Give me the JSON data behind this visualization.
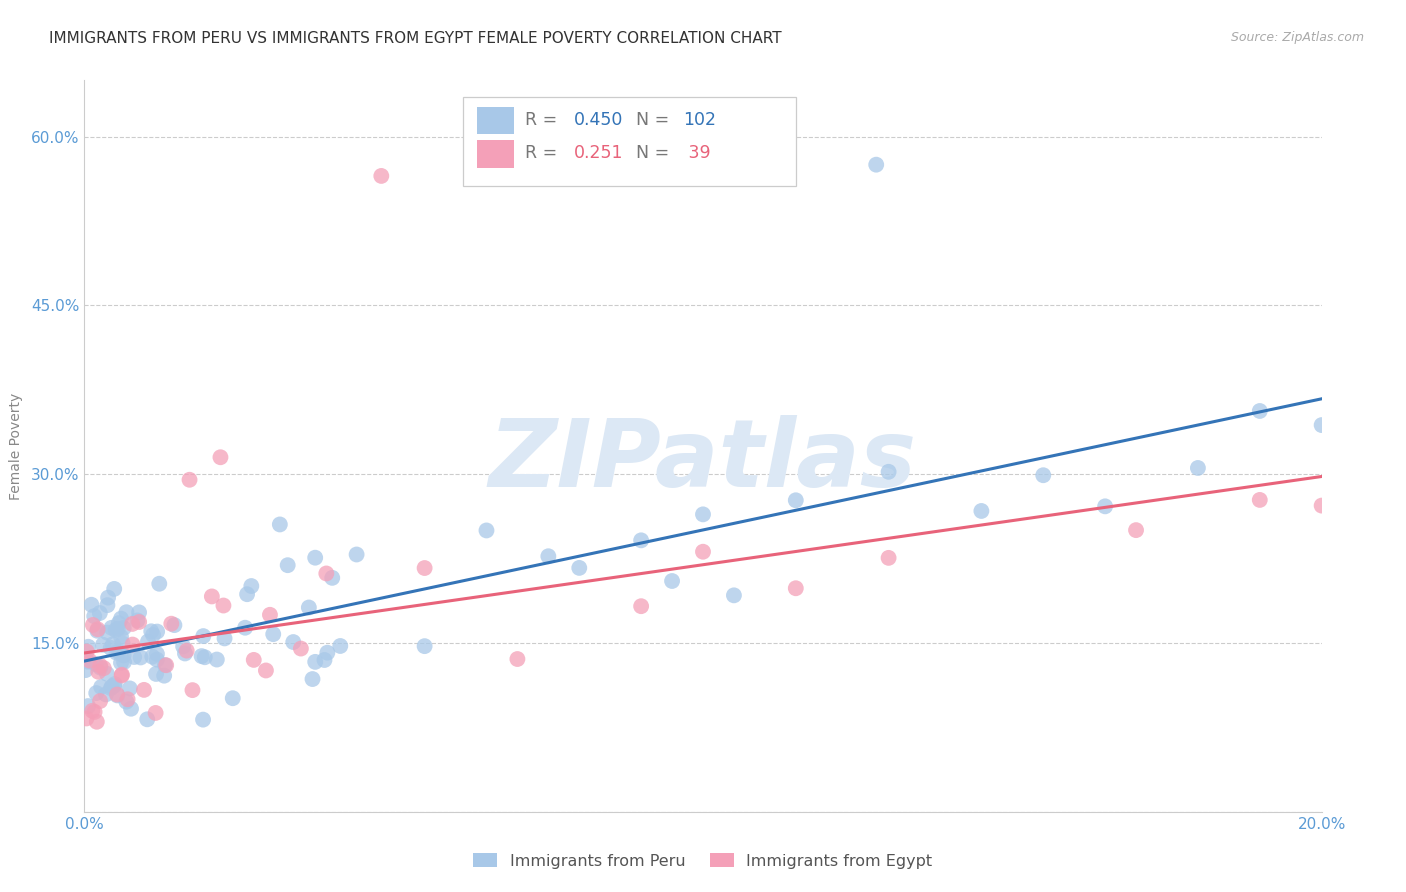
{
  "title": "IMMIGRANTS FROM PERU VS IMMIGRANTS FROM EGYPT FEMALE POVERTY CORRELATION CHART",
  "source": "Source: ZipAtlas.com",
  "ylabel": "Female Poverty",
  "xlim": [
    0.0,
    0.2
  ],
  "ylim": [
    0.0,
    0.65
  ],
  "yticks": [
    0.0,
    0.15,
    0.3,
    0.45,
    0.6
  ],
  "ytick_labels": [
    "",
    "15.0%",
    "30.0%",
    "45.0%",
    "60.0%"
  ],
  "xticks": [
    0.0,
    0.05,
    0.1,
    0.15,
    0.2
  ],
  "xtick_labels": [
    "0.0%",
    "",
    "",
    "",
    "20.0%"
  ],
  "watermark": "ZIPatlas",
  "peru_color": "#a8c8e8",
  "egypt_color": "#f4a0b8",
  "peru_line_color": "#3474b7",
  "egypt_line_color": "#e8637a",
  "background_color": "#ffffff",
  "grid_color": "#cccccc",
  "title_color": "#333333",
  "tick_label_color": "#5b9bd5",
  "watermark_color": "#dce8f5",
  "title_fontsize": 11,
  "source_fontsize": 9,
  "ylabel_fontsize": 10,
  "tick_fontsize": 11,
  "watermark_fontsize": 68,
  "peru_R": "0.450",
  "peru_N": "102",
  "egypt_R": "0.251",
  "egypt_N": "39",
  "peru_label": "Immigrants from Peru",
  "egypt_label": "Immigrants from Egypt"
}
